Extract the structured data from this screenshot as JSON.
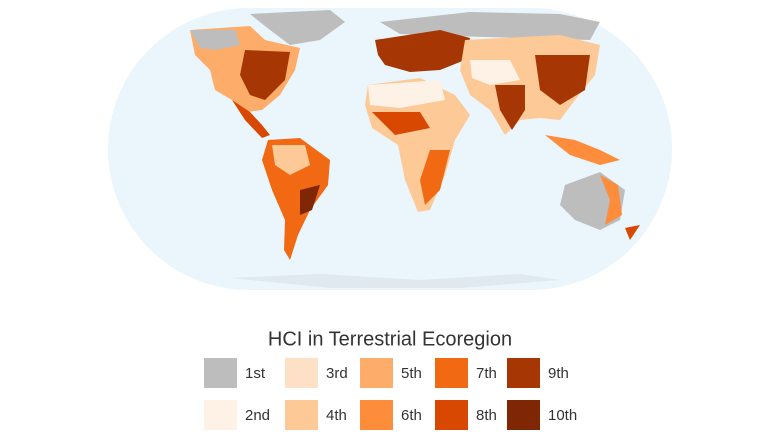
{
  "legend": {
    "title": "HCI in Terrestrial Ecoregion",
    "items": [
      {
        "label": "1st",
        "color": "#bdbdbd"
      },
      {
        "label": "2nd",
        "color": "#fef1e6"
      },
      {
        "label": "3rd",
        "color": "#fde0c5"
      },
      {
        "label": "4th",
        "color": "#fdc997"
      },
      {
        "label": "5th",
        "color": "#fdac6a"
      },
      {
        "label": "6th",
        "color": "#fd8c3b"
      },
      {
        "label": "7th",
        "color": "#f16913"
      },
      {
        "label": "8th",
        "color": "#d94801"
      },
      {
        "label": "9th",
        "color": "#a63603"
      },
      {
        "label": "10th",
        "color": "#7f2704"
      }
    ]
  }
}
